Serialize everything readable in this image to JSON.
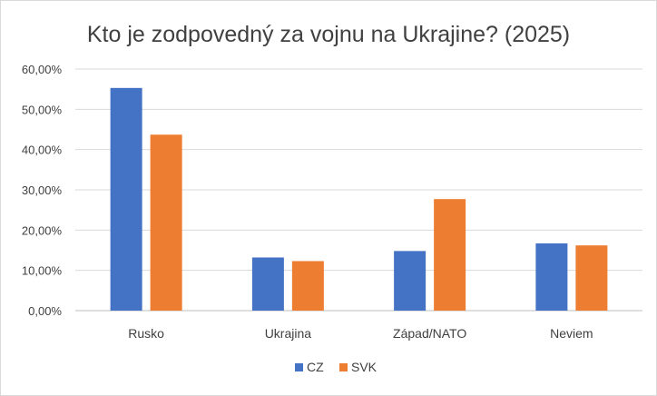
{
  "chart_data": {
    "type": "bar",
    "title": "Kto je zodpovedný za vojnu na Ukrajine? (2025)",
    "xlabel": "",
    "ylabel": "",
    "categories": [
      "Rusko",
      "Ukrajina",
      "Západ/NATO",
      "Neviem"
    ],
    "series": [
      {
        "name": "CZ",
        "color": "#4472C4",
        "values": [
          55.3,
          13.2,
          14.8,
          16.7
        ]
      },
      {
        "name": "SVK",
        "color": "#ED7D31",
        "values": [
          43.7,
          12.3,
          27.7,
          16.2
        ]
      }
    ],
    "ylim": [
      0,
      60
    ],
    "yticks": [
      "0,00%",
      "10,00%",
      "20,00%",
      "30,00%",
      "40,00%",
      "50,00%",
      "60,00%"
    ],
    "grid": true,
    "legend": "bottom"
  }
}
